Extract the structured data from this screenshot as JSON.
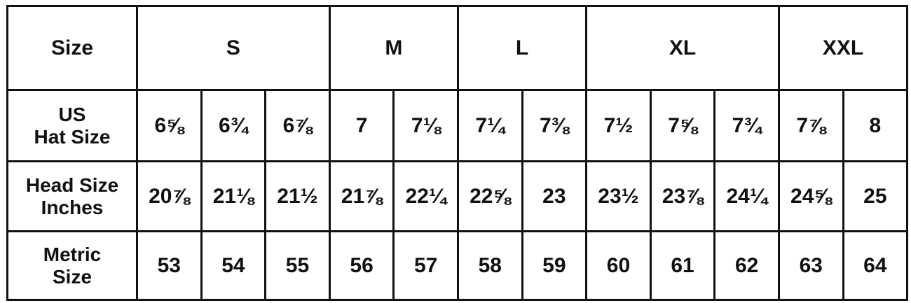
{
  "table": {
    "header_label": "Size",
    "size_groups": [
      {
        "label": "S",
        "span": 3
      },
      {
        "label": "M",
        "span": 2
      },
      {
        "label": "L",
        "span": 2
      },
      {
        "label": "XL",
        "span": 3
      },
      {
        "label": "XXL",
        "span": 2
      }
    ],
    "rows": [
      {
        "label_line1": "US",
        "label_line2": "Hat Size",
        "values": [
          "6⅝",
          "6¾",
          "6⅞",
          "7",
          "7⅛",
          "7¼",
          "7⅜",
          "7½",
          "7⅝",
          "7¾",
          "7⅞",
          "8"
        ]
      },
      {
        "label_line1": "Head Size",
        "label_line2": "Inches",
        "values": [
          "20⅞",
          "21⅛",
          "21½",
          "21⅞",
          "22¼",
          "22⅝",
          "23",
          "23½",
          "23⅞",
          "24¼",
          "24⅝",
          "25"
        ]
      },
      {
        "label_line1": "Metric",
        "label_line2": "Size",
        "values": [
          "53",
          "54",
          "55",
          "56",
          "57",
          "58",
          "59",
          "60",
          "61",
          "62",
          "63",
          "64"
        ]
      }
    ]
  }
}
